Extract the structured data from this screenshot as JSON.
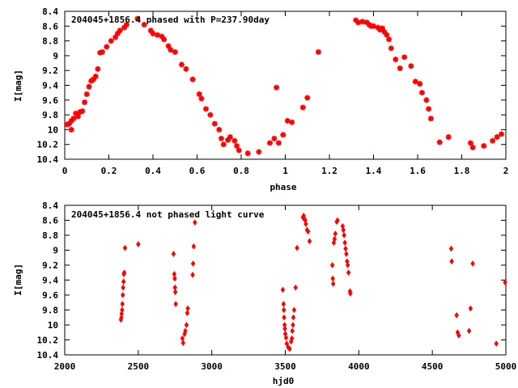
{
  "chart_data": [
    {
      "type": "scatter",
      "title": "204045+1856.4 phased with P=237.90day",
      "xlabel": "phase",
      "ylabel": "I[mag]",
      "xlim": [
        0,
        2
      ],
      "ylim": [
        10.4,
        8.4
      ],
      "y_inverted": true,
      "xticks": [
        0,
        0.2,
        0.4,
        0.6,
        0.8,
        1,
        1.2,
        1.4,
        1.6,
        1.8,
        2
      ],
      "xtick_labels": [
        "0",
        "0.2",
        "0.4",
        "0.6",
        "0.8",
        "1",
        "1.2",
        "1.4",
        "1.6",
        "1.8",
        "2"
      ],
      "yticks": [
        8.4,
        8.6,
        8.8,
        9,
        9.2,
        9.4,
        9.6,
        9.8,
        10,
        10.2,
        10.4
      ],
      "ytick_labels": [
        "8.4",
        "8.6",
        "8.8",
        "9",
        "9.2",
        "9.4",
        "9.6",
        "9.8",
        "10",
        "10.2",
        "10.4"
      ],
      "grid": false,
      "marker": "star",
      "color": "#ff0000",
      "points": [
        [
          0.01,
          9.93
        ],
        [
          0.02,
          9.92
        ],
        [
          0.03,
          10.0
        ],
        [
          0.03,
          9.88
        ],
        [
          0.04,
          9.85
        ],
        [
          0.05,
          9.78
        ],
        [
          0.06,
          9.82
        ],
        [
          0.07,
          9.76
        ],
        [
          0.08,
          9.75
        ],
        [
          0.09,
          9.63
        ],
        [
          0.1,
          9.52
        ],
        [
          0.11,
          9.42
        ],
        [
          0.12,
          9.34
        ],
        [
          0.13,
          9.32
        ],
        [
          0.14,
          9.28
        ],
        [
          0.15,
          9.18
        ],
        [
          0.16,
          8.96
        ],
        [
          0.17,
          8.95
        ],
        [
          0.19,
          8.88
        ],
        [
          0.21,
          8.8
        ],
        [
          0.23,
          8.75
        ],
        [
          0.24,
          8.7
        ],
        [
          0.25,
          8.66
        ],
        [
          0.27,
          8.62
        ],
        [
          0.28,
          8.58
        ],
        [
          0.33,
          8.5
        ],
        [
          0.36,
          8.58
        ],
        [
          0.39,
          8.66
        ],
        [
          0.4,
          8.7
        ],
        [
          0.42,
          8.72
        ],
        [
          0.44,
          8.74
        ],
        [
          0.45,
          8.78
        ],
        [
          0.47,
          8.87
        ],
        [
          0.48,
          8.92
        ],
        [
          0.5,
          8.95
        ],
        [
          0.53,
          9.12
        ],
        [
          0.55,
          9.18
        ],
        [
          0.58,
          9.32
        ],
        [
          0.61,
          9.52
        ],
        [
          0.62,
          9.58
        ],
        [
          0.64,
          9.72
        ],
        [
          0.66,
          9.8
        ],
        [
          0.68,
          9.92
        ],
        [
          0.7,
          10.0
        ],
        [
          0.71,
          10.12
        ],
        [
          0.72,
          10.2
        ],
        [
          0.74,
          10.14
        ],
        [
          0.75,
          10.1
        ],
        [
          0.77,
          10.15
        ],
        [
          0.78,
          10.22
        ],
        [
          0.79,
          10.28
        ],
        [
          0.83,
          10.32
        ],
        [
          0.88,
          10.3
        ],
        [
          0.93,
          10.18
        ],
        [
          0.95,
          10.12
        ],
        [
          0.96,
          9.43
        ],
        [
          0.97,
          10.18
        ],
        [
          0.99,
          10.07
        ],
        [
          1.01,
          9.88
        ],
        [
          1.03,
          9.9
        ],
        [
          1.08,
          9.7
        ],
        [
          1.1,
          9.57
        ],
        [
          1.15,
          8.95
        ],
        [
          1.32,
          8.52
        ],
        [
          1.33,
          8.55
        ],
        [
          1.35,
          8.54
        ],
        [
          1.37,
          8.55
        ],
        [
          1.38,
          8.58
        ],
        [
          1.39,
          8.6
        ],
        [
          1.4,
          8.6
        ],
        [
          1.42,
          8.62
        ],
        [
          1.43,
          8.65
        ],
        [
          1.44,
          8.63
        ],
        [
          1.45,
          8.68
        ],
        [
          1.46,
          8.72
        ],
        [
          1.47,
          8.78
        ],
        [
          1.48,
          8.9
        ],
        [
          1.5,
          9.05
        ],
        [
          1.52,
          9.17
        ],
        [
          1.54,
          9.02
        ],
        [
          1.57,
          9.14
        ],
        [
          1.59,
          9.35
        ],
        [
          1.61,
          9.38
        ],
        [
          1.62,
          9.5
        ],
        [
          1.64,
          9.6
        ],
        [
          1.65,
          9.72
        ],
        [
          1.66,
          9.85
        ],
        [
          1.7,
          10.17
        ],
        [
          1.74,
          10.1
        ],
        [
          1.84,
          10.18
        ],
        [
          1.85,
          10.24
        ],
        [
          1.9,
          10.22
        ],
        [
          1.94,
          10.15
        ],
        [
          1.96,
          10.1
        ],
        [
          1.98,
          10.06
        ]
      ]
    },
    {
      "type": "scatter",
      "title": "204045+1856.4 not phased light curve",
      "xlabel": "hjd0",
      "ylabel": "I[mag]",
      "xlim": [
        2000,
        5000
      ],
      "ylim": [
        10.4,
        8.4
      ],
      "y_inverted": true,
      "xticks": [
        2000,
        2500,
        3000,
        3500,
        4000,
        4500,
        5000
      ],
      "xtick_labels": [
        "2000",
        "2500",
        "3000",
        "3500",
        "4000",
        "4500",
        "5000"
      ],
      "yticks": [
        8.4,
        8.6,
        8.8,
        9,
        9.2,
        9.4,
        9.6,
        9.8,
        10,
        10.2,
        10.4
      ],
      "ytick_labels": [
        "8.4",
        "8.6",
        "8.8",
        "9",
        "9.2",
        "9.4",
        "9.6",
        "9.8",
        "10",
        "10.2",
        "10.4"
      ],
      "grid": false,
      "marker": "diamond",
      "color": "#ff0000",
      "points": [
        [
          2382,
          9.93
        ],
        [
          2385,
          9.9
        ],
        [
          2387,
          9.85
        ],
        [
          2390,
          9.8
        ],
        [
          2392,
          9.72
        ],
        [
          2395,
          9.6
        ],
        [
          2397,
          9.5
        ],
        [
          2400,
          9.42
        ],
        [
          2402,
          9.32
        ],
        [
          2405,
          9.3
        ],
        [
          2410,
          8.97
        ],
        [
          2500,
          8.92
        ],
        [
          2740,
          9.05
        ],
        [
          2745,
          9.32
        ],
        [
          2748,
          9.38
        ],
        [
          2750,
          9.5
        ],
        [
          2752,
          9.56
        ],
        [
          2755,
          9.72
        ],
        [
          2800,
          10.18
        ],
        [
          2805,
          10.24
        ],
        [
          2815,
          10.12
        ],
        [
          2820,
          10.08
        ],
        [
          2828,
          10.0
        ],
        [
          2833,
          9.84
        ],
        [
          2837,
          9.78
        ],
        [
          2870,
          9.33
        ],
        [
          2873,
          9.18
        ],
        [
          2877,
          8.95
        ],
        [
          2885,
          8.63
        ],
        [
          3483,
          9.53
        ],
        [
          3488,
          9.72
        ],
        [
          3490,
          9.8
        ],
        [
          3492,
          9.9
        ],
        [
          3495,
          10.0
        ],
        [
          3497,
          10.05
        ],
        [
          3500,
          10.12
        ],
        [
          3505,
          10.17
        ],
        [
          3510,
          10.25
        ],
        [
          3520,
          10.3
        ],
        [
          3530,
          10.32
        ],
        [
          3540,
          10.22
        ],
        [
          3545,
          10.18
        ],
        [
          3548,
          10.08
        ],
        [
          3552,
          10.0
        ],
        [
          3555,
          9.9
        ],
        [
          3560,
          9.8
        ],
        [
          3570,
          9.5
        ],
        [
          3580,
          8.97
        ],
        [
          3620,
          8.56
        ],
        [
          3625,
          8.54
        ],
        [
          3630,
          8.58
        ],
        [
          3635,
          8.6
        ],
        [
          3640,
          8.65
        ],
        [
          3648,
          8.73
        ],
        [
          3655,
          8.75
        ],
        [
          3665,
          8.88
        ],
        [
          3820,
          9.2
        ],
        [
          3823,
          9.38
        ],
        [
          3826,
          9.45
        ],
        [
          3830,
          8.9
        ],
        [
          3835,
          8.85
        ],
        [
          3840,
          8.78
        ],
        [
          3850,
          8.62
        ],
        [
          3855,
          8.6
        ],
        [
          3890,
          8.68
        ],
        [
          3895,
          8.73
        ],
        [
          3900,
          8.8
        ],
        [
          3905,
          8.9
        ],
        [
          3910,
          8.98
        ],
        [
          3915,
          9.05
        ],
        [
          3920,
          9.15
        ],
        [
          3925,
          9.2
        ],
        [
          3930,
          9.3
        ],
        [
          3940,
          9.55
        ],
        [
          3942,
          9.58
        ],
        [
          4628,
          8.98
        ],
        [
          4632,
          9.15
        ],
        [
          4665,
          9.87
        ],
        [
          4672,
          10.1
        ],
        [
          4680,
          10.14
        ],
        [
          4750,
          10.08
        ],
        [
          4760,
          9.78
        ],
        [
          4775,
          9.18
        ],
        [
          4935,
          10.25
        ],
        [
          4995,
          9.43
        ]
      ]
    }
  ]
}
